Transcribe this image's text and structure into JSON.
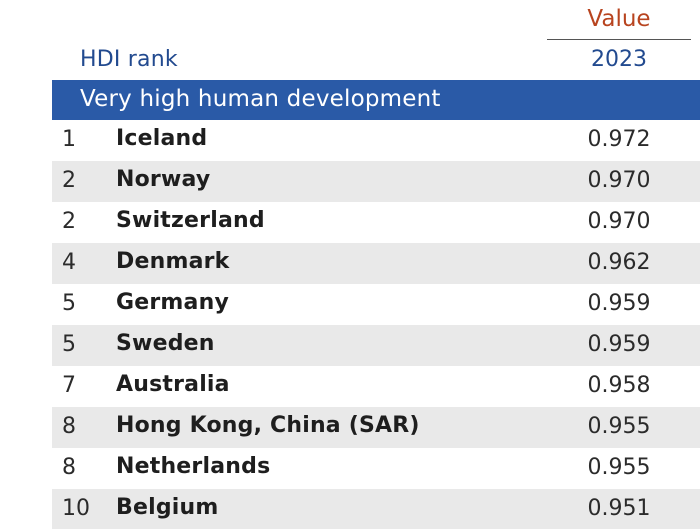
{
  "header": {
    "value_label": "Value",
    "year": "2023",
    "rank_label": "HDI rank"
  },
  "group": {
    "title": "Very high human development"
  },
  "rows": [
    {
      "rank": "1",
      "country": "Iceland",
      "value": "0.972"
    },
    {
      "rank": "2",
      "country": "Norway",
      "value": "0.970"
    },
    {
      "rank": "2",
      "country": "Switzerland",
      "value": "0.970"
    },
    {
      "rank": "4",
      "country": "Denmark",
      "value": "0.962"
    },
    {
      "rank": "5",
      "country": "Germany",
      "value": "0.959"
    },
    {
      "rank": "5",
      "country": "Sweden",
      "value": "0.959"
    },
    {
      "rank": "7",
      "country": "Australia",
      "value": "0.958"
    },
    {
      "rank": "8",
      "country": "Hong Kong, China (SAR)",
      "value": "0.955"
    },
    {
      "rank": "8",
      "country": "Netherlands",
      "value": "0.955"
    },
    {
      "rank": "10",
      "country": "Belgium",
      "value": "0.951"
    }
  ],
  "colors": {
    "value_label": "#b8441f",
    "header_text": "#224a8f",
    "group_bar": "#2a5aa7",
    "alt_row": "#e9e9e9"
  }
}
